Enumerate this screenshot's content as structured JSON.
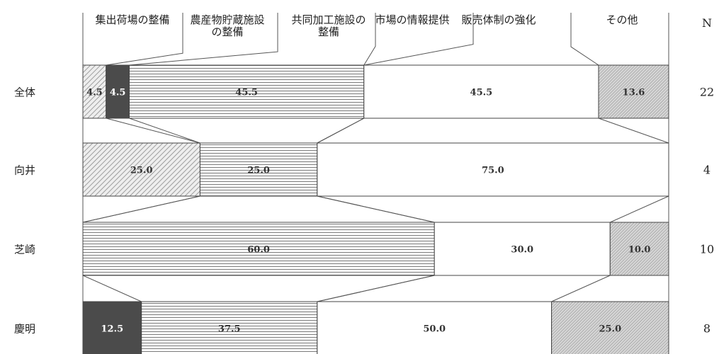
{
  "chart_data": {
    "type": "bar",
    "stacked": true,
    "percent_stacked": true,
    "categories": [
      "全体",
      "向井",
      "芝崎",
      "慶明"
    ],
    "series": [
      {
        "name": "集出荷場の整備",
        "values": [
          4.5,
          25.0,
          0,
          0
        ],
        "pattern": "diag",
        "color": "#c8c8c8"
      },
      {
        "name": "農産物貯蔵施設の整備",
        "values": [
          4.5,
          0,
          0,
          12.5
        ],
        "pattern": "dark",
        "color": "#4a4a4a"
      },
      {
        "name": "共同加工施設の整備",
        "values": [
          45.5,
          25.0,
          60.0,
          37.5
        ],
        "pattern": "hlines",
        "color": "#d9d9d9"
      },
      {
        "name": "市場の情報提供",
        "values": [
          0,
          0,
          0,
          0
        ],
        "pattern": "blank",
        "color": "#ffffff"
      },
      {
        "name": "販売体制の強化",
        "values": [
          45.5,
          75.0,
          30.0,
          50.0
        ],
        "pattern": "white",
        "color": "#ffffff"
      },
      {
        "name": "その他",
        "values": [
          13.6,
          0,
          10.0,
          25.0
        ],
        "pattern": "fine-diag",
        "color": "#bdbdbd"
      }
    ],
    "n_label": "N",
    "n_values": [
      22,
      4,
      10,
      8
    ]
  }
}
